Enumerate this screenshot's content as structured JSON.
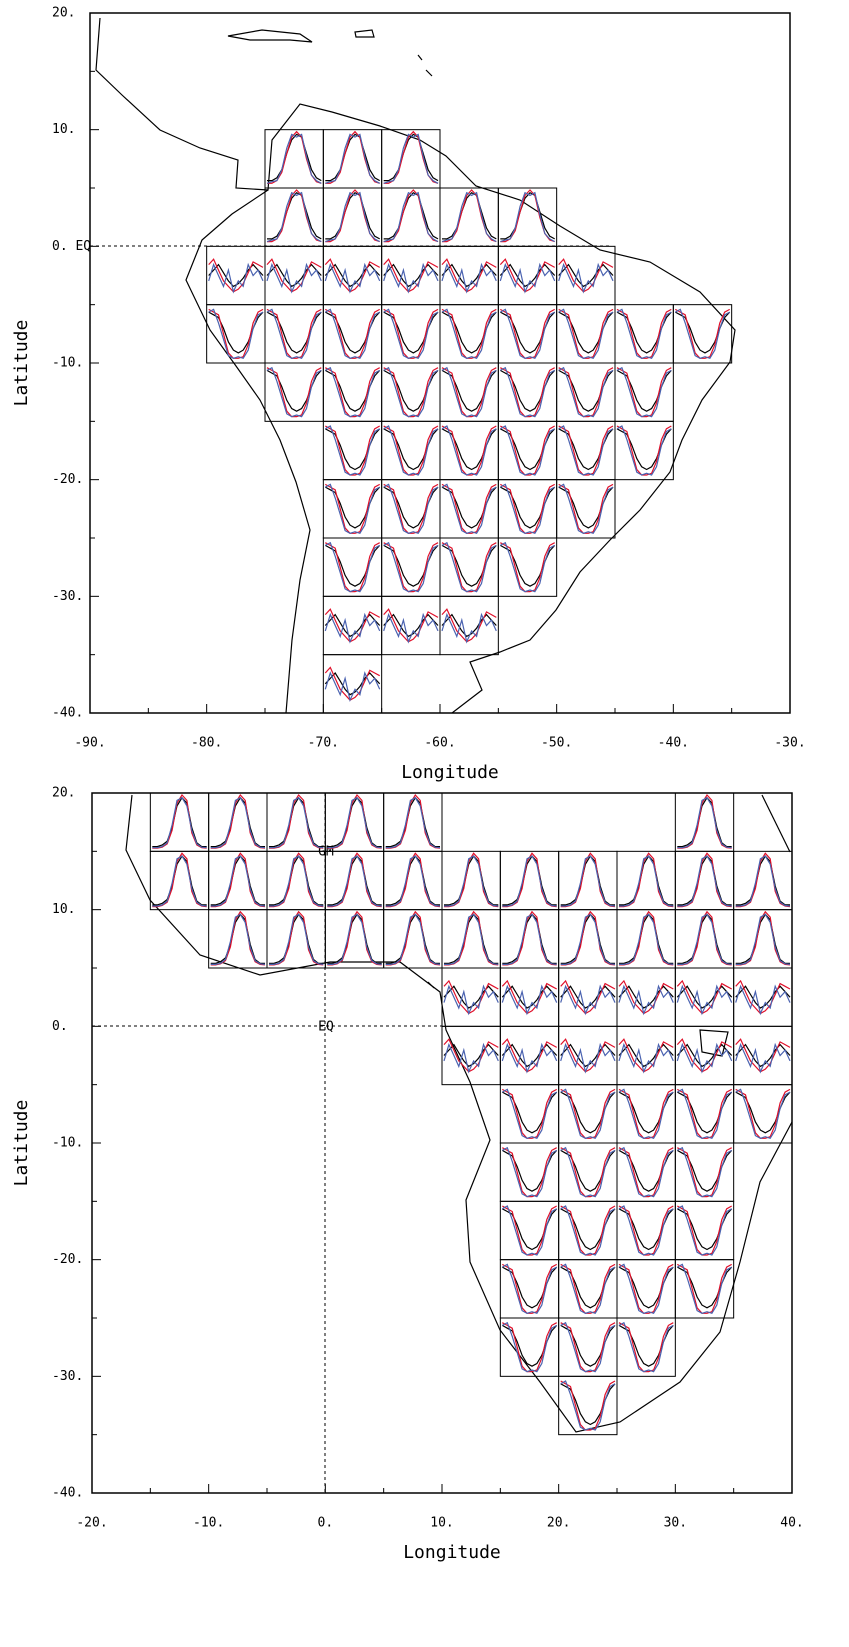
{
  "chart_data": [
    {
      "type": "map",
      "xlabel": "Longitude",
      "ylabel": "Latitude",
      "xlim": [
        -90,
        -30
      ],
      "ylim": [
        -40,
        20
      ],
      "xticks": [
        {
          "value": -90,
          "label": "-90."
        },
        {
          "value": -80,
          "label": "-80."
        },
        {
          "value": -70,
          "label": "-70."
        },
        {
          "value": -60,
          "label": "-60."
        },
        {
          "value": -50,
          "label": "-50."
        },
        {
          "value": -40,
          "label": "-40."
        },
        {
          "value": -30,
          "label": "-30."
        }
      ],
      "yticks": [
        {
          "value": -40,
          "label": "-40."
        },
        {
          "value": -30,
          "label": "-30."
        },
        {
          "value": -20,
          "label": "-20."
        },
        {
          "value": -10,
          "label": "-10."
        },
        {
          "value": 0,
          "label": "0. EQ"
        },
        {
          "value": 10,
          "label": "10."
        },
        {
          "value": 20,
          "label": "20."
        }
      ],
      "colors": [
        "#000000",
        "#e0102a",
        "#4a62b0"
      ],
      "profiles": [
        [
          [
            0.1,
            0.1,
            0.15,
            0.3,
            0.6,
            0.85,
            0.95,
            0.9,
            0.6,
            0.3,
            0.15,
            0.1
          ],
          [
            0.05,
            0.05,
            0.1,
            0.25,
            0.6,
            0.9,
            1,
            0.9,
            0.5,
            0.2,
            0.08,
            0.05
          ],
          [
            0.05,
            0.08,
            0.1,
            0.3,
            0.7,
            0.95,
            0.9,
            0.95,
            0.55,
            0.2,
            0.1,
            0.05
          ]
        ],
        [
          [
            0.9,
            0.85,
            0.8,
            0.6,
            0.35,
            0.2,
            0.15,
            0.2,
            0.35,
            0.6,
            0.8,
            0.9
          ],
          [
            0.95,
            0.9,
            0.85,
            0.5,
            0.15,
            0.05,
            0.05,
            0.08,
            0.3,
            0.7,
            0.9,
            0.95
          ],
          [
            0.9,
            0.95,
            0.7,
            0.4,
            0.1,
            0.05,
            0.08,
            0.05,
            0.2,
            0.6,
            0.85,
            0.9
          ]
        ],
        [
          [
            0.5,
            0.6,
            0.7,
            0.55,
            0.4,
            0.3,
            0.35,
            0.45,
            0.6,
            0.7,
            0.6,
            0.5
          ],
          [
            0.7,
            0.8,
            0.6,
            0.4,
            0.3,
            0.2,
            0.25,
            0.35,
            0.55,
            0.75,
            0.7,
            0.65
          ],
          [
            0.4,
            0.7,
            0.5,
            0.3,
            0.6,
            0.2,
            0.4,
            0.3,
            0.7,
            0.5,
            0.6,
            0.4
          ]
        ]
      ],
      "cells": [
        [
          -75,
          5,
          0
        ],
        [
          -70,
          5,
          0
        ],
        [
          -65,
          5,
          0
        ],
        [
          -75,
          0,
          0
        ],
        [
          -70,
          0,
          0
        ],
        [
          -65,
          0,
          0
        ],
        [
          -60,
          0,
          0
        ],
        [
          -55,
          0,
          0
        ],
        [
          -80,
          -5,
          2
        ],
        [
          -75,
          -5,
          2
        ],
        [
          -70,
          -5,
          2
        ],
        [
          -65,
          -5,
          2
        ],
        [
          -60,
          -5,
          2
        ],
        [
          -55,
          -5,
          2
        ],
        [
          -50,
          -5,
          2
        ],
        [
          -80,
          -10,
          1
        ],
        [
          -75,
          -10,
          1
        ],
        [
          -70,
          -10,
          1
        ],
        [
          -65,
          -10,
          1
        ],
        [
          -60,
          -10,
          1
        ],
        [
          -55,
          -10,
          1
        ],
        [
          -50,
          -10,
          1
        ],
        [
          -45,
          -10,
          1
        ],
        [
          -40,
          -10,
          1
        ],
        [
          -75,
          -15,
          1
        ],
        [
          -70,
          -15,
          1
        ],
        [
          -65,
          -15,
          1
        ],
        [
          -60,
          -15,
          1
        ],
        [
          -55,
          -15,
          1
        ],
        [
          -50,
          -15,
          1
        ],
        [
          -45,
          -15,
          1
        ],
        [
          -70,
          -20,
          1
        ],
        [
          -65,
          -20,
          1
        ],
        [
          -60,
          -20,
          1
        ],
        [
          -55,
          -20,
          1
        ],
        [
          -50,
          -20,
          1
        ],
        [
          -45,
          -20,
          1
        ],
        [
          -70,
          -25,
          1
        ],
        [
          -65,
          -25,
          1
        ],
        [
          -60,
          -25,
          1
        ],
        [
          -55,
          -25,
          1
        ],
        [
          -50,
          -25,
          1
        ],
        [
          -70,
          -30,
          1
        ],
        [
          -65,
          -30,
          1
        ],
        [
          -60,
          -30,
          1
        ],
        [
          -55,
          -30,
          1
        ],
        [
          -70,
          -35,
          2
        ],
        [
          -65,
          -35,
          2
        ],
        [
          -60,
          -35,
          2
        ],
        [
          -70,
          -40,
          2
        ]
      ]
    },
    {
      "type": "map",
      "xlabel": "Longitude",
      "ylabel": "Latitude",
      "xlim": [
        -20,
        40
      ],
      "ylim": [
        -40,
        20
      ],
      "xticks": [
        {
          "value": -20,
          "label": "-20."
        },
        {
          "value": -10,
          "label": "-10."
        },
        {
          "value": 0,
          "label": "0."
        },
        {
          "value": 10,
          "label": "10."
        },
        {
          "value": 20,
          "label": "20."
        },
        {
          "value": 30,
          "label": "30."
        },
        {
          "value": 40,
          "label": "40."
        }
      ],
      "yticks": [
        {
          "value": -40,
          "label": "-40."
        },
        {
          "value": -30,
          "label": "-30."
        },
        {
          "value": -20,
          "label": "-20."
        },
        {
          "value": -10,
          "label": "-10."
        },
        {
          "value": 0,
          "label": "0."
        },
        {
          "value": 10,
          "label": "10."
        },
        {
          "value": 20,
          "label": "20."
        }
      ],
      "annotations": [
        "GM",
        "EQ"
      ],
      "colors": [
        "#000000",
        "#e0102a",
        "#4a62b0"
      ],
      "profiles": [
        [
          [
            0.05,
            0.05,
            0.08,
            0.15,
            0.4,
            0.8,
            0.95,
            0.85,
            0.4,
            0.12,
            0.05,
            0.05
          ],
          [
            0.02,
            0.02,
            0.04,
            0.1,
            0.35,
            0.85,
            1,
            0.9,
            0.3,
            0.08,
            0.03,
            0.02
          ],
          [
            0.03,
            0.03,
            0.05,
            0.12,
            0.45,
            0.9,
            0.95,
            0.8,
            0.35,
            0.1,
            0.04,
            0.03
          ]
        ],
        [
          [
            0.9,
            0.85,
            0.8,
            0.6,
            0.35,
            0.2,
            0.15,
            0.2,
            0.35,
            0.6,
            0.8,
            0.9
          ],
          [
            0.95,
            0.9,
            0.85,
            0.5,
            0.15,
            0.05,
            0.05,
            0.08,
            0.3,
            0.7,
            0.9,
            0.95
          ],
          [
            0.9,
            0.95,
            0.7,
            0.4,
            0.1,
            0.05,
            0.08,
            0.05,
            0.2,
            0.6,
            0.85,
            0.9
          ]
        ],
        [
          [
            0.5,
            0.6,
            0.7,
            0.55,
            0.4,
            0.3,
            0.35,
            0.45,
            0.6,
            0.7,
            0.6,
            0.5
          ],
          [
            0.7,
            0.8,
            0.6,
            0.4,
            0.3,
            0.2,
            0.25,
            0.35,
            0.55,
            0.75,
            0.7,
            0.65
          ],
          [
            0.4,
            0.7,
            0.5,
            0.3,
            0.6,
            0.2,
            0.4,
            0.3,
            0.7,
            0.5,
            0.6,
            0.4
          ]
        ]
      ],
      "cells": [
        [
          -15,
          15,
          0
        ],
        [
          -10,
          15,
          0
        ],
        [
          -5,
          15,
          0
        ],
        [
          0,
          15,
          0
        ],
        [
          5,
          15,
          0
        ],
        [
          30,
          15,
          0
        ],
        [
          -15,
          10,
          0
        ],
        [
          -10,
          10,
          0
        ],
        [
          -5,
          10,
          0
        ],
        [
          0,
          10,
          0
        ],
        [
          5,
          10,
          0
        ],
        [
          10,
          10,
          0
        ],
        [
          15,
          10,
          0
        ],
        [
          20,
          10,
          0
        ],
        [
          25,
          10,
          0
        ],
        [
          30,
          10,
          0
        ],
        [
          35,
          10,
          0
        ],
        [
          -10,
          5,
          0
        ],
        [
          -5,
          5,
          0
        ],
        [
          0,
          5,
          0
        ],
        [
          5,
          5,
          0
        ],
        [
          10,
          5,
          0
        ],
        [
          15,
          5,
          0
        ],
        [
          20,
          5,
          0
        ],
        [
          25,
          5,
          0
        ],
        [
          30,
          5,
          0
        ],
        [
          35,
          5,
          0
        ],
        [
          10,
          0,
          2
        ],
        [
          15,
          0,
          2
        ],
        [
          20,
          0,
          2
        ],
        [
          25,
          0,
          2
        ],
        [
          30,
          0,
          2
        ],
        [
          35,
          0,
          2
        ],
        [
          10,
          -5,
          2
        ],
        [
          15,
          -5,
          2
        ],
        [
          20,
          -5,
          2
        ],
        [
          25,
          -5,
          2
        ],
        [
          30,
          -5,
          2
        ],
        [
          35,
          -5,
          2
        ],
        [
          15,
          -10,
          1
        ],
        [
          20,
          -10,
          1
        ],
        [
          25,
          -10,
          1
        ],
        [
          30,
          -10,
          1
        ],
        [
          35,
          -10,
          1
        ],
        [
          15,
          -15,
          1
        ],
        [
          20,
          -15,
          1
        ],
        [
          25,
          -15,
          1
        ],
        [
          30,
          -15,
          1
        ],
        [
          15,
          -20,
          1
        ],
        [
          20,
          -20,
          1
        ],
        [
          25,
          -20,
          1
        ],
        [
          30,
          -20,
          1
        ],
        [
          15,
          -25,
          1
        ],
        [
          20,
          -25,
          1
        ],
        [
          25,
          -25,
          1
        ],
        [
          30,
          -25,
          1
        ],
        [
          15,
          -30,
          1
        ],
        [
          20,
          -30,
          1
        ],
        [
          25,
          -30,
          1
        ],
        [
          20,
          -35,
          1
        ]
      ]
    }
  ]
}
